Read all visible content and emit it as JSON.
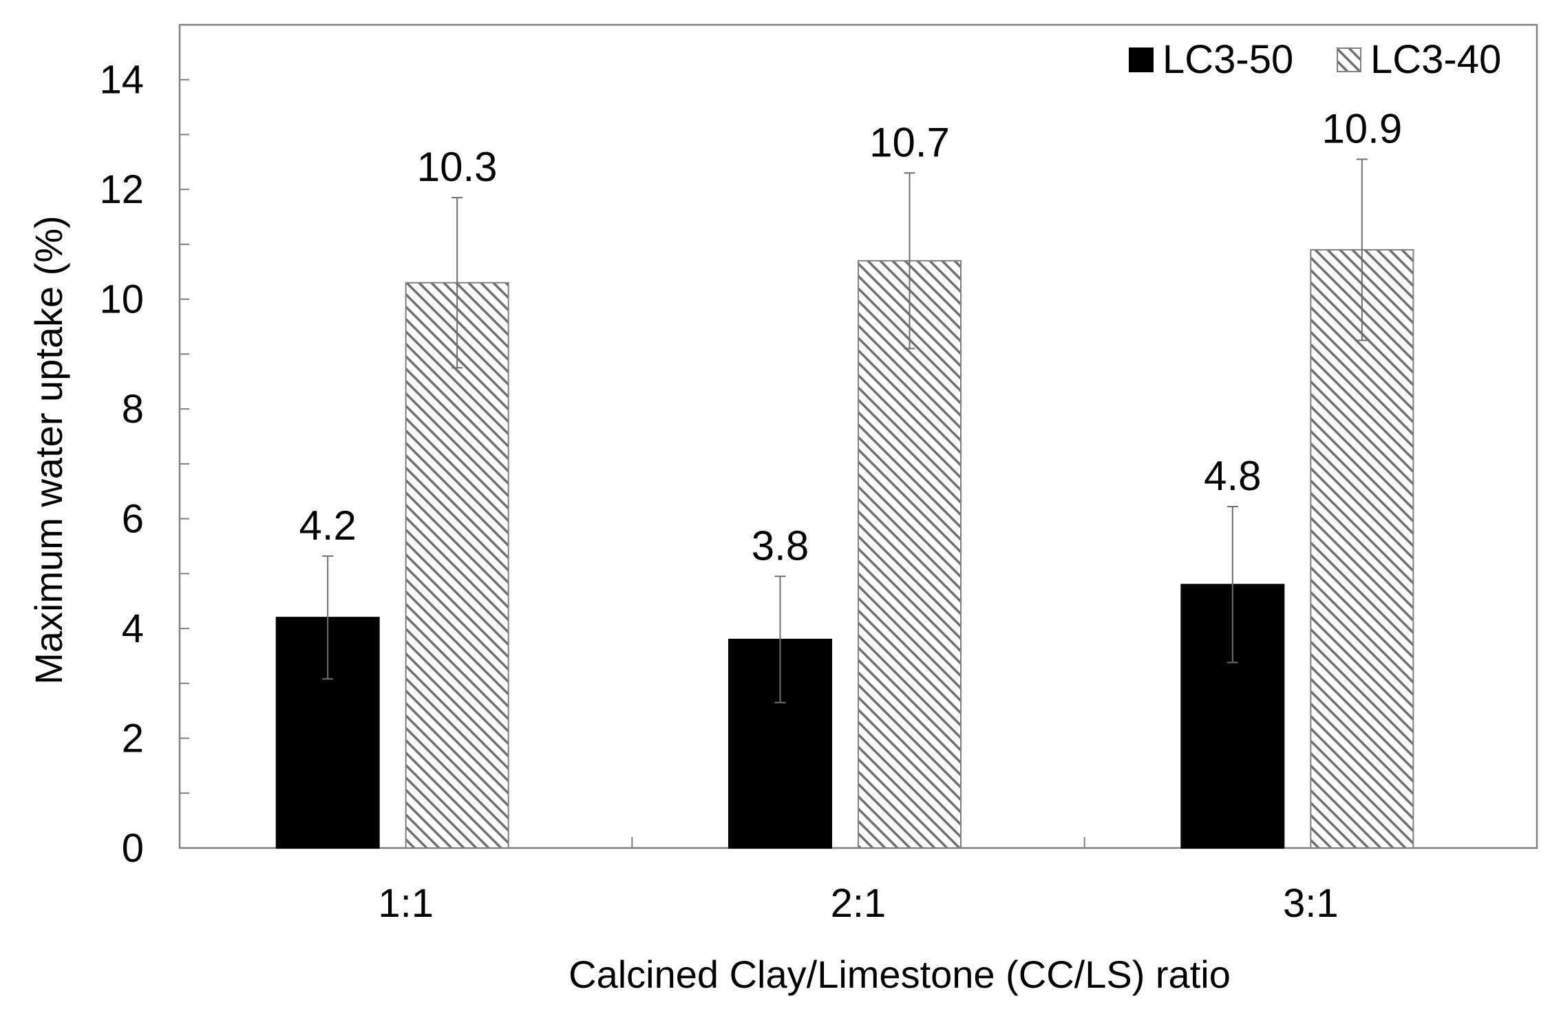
{
  "chart_data": {
    "type": "bar",
    "title": "",
    "xlabel": "Calcined Clay/Limestone (CC/LS) ratio",
    "ylabel": "Maximum water uptake (%)",
    "ylim": [
      0,
      15
    ],
    "yticks": [
      0,
      2,
      4,
      6,
      8,
      10,
      12,
      14
    ],
    "yminor_step": 1,
    "grid": false,
    "legend_position": "top-right",
    "categories": [
      "1:1",
      "2:1",
      "3:1"
    ],
    "series": [
      {
        "name": "LC3-50",
        "style": "solid",
        "color": "#000000",
        "values": [
          4.2,
          3.8,
          4.8
        ],
        "errors": [
          1.12,
          1.15,
          1.42
        ],
        "labels": [
          "4.2",
          "3.8",
          "4.8"
        ]
      },
      {
        "name": "LC3-40",
        "style": "hatched",
        "color": "#808080",
        "values": [
          10.3,
          10.7,
          10.9
        ],
        "errors": [
          1.55,
          1.6,
          1.65
        ],
        "labels": [
          "10.3",
          "10.7",
          "10.9"
        ]
      }
    ]
  }
}
